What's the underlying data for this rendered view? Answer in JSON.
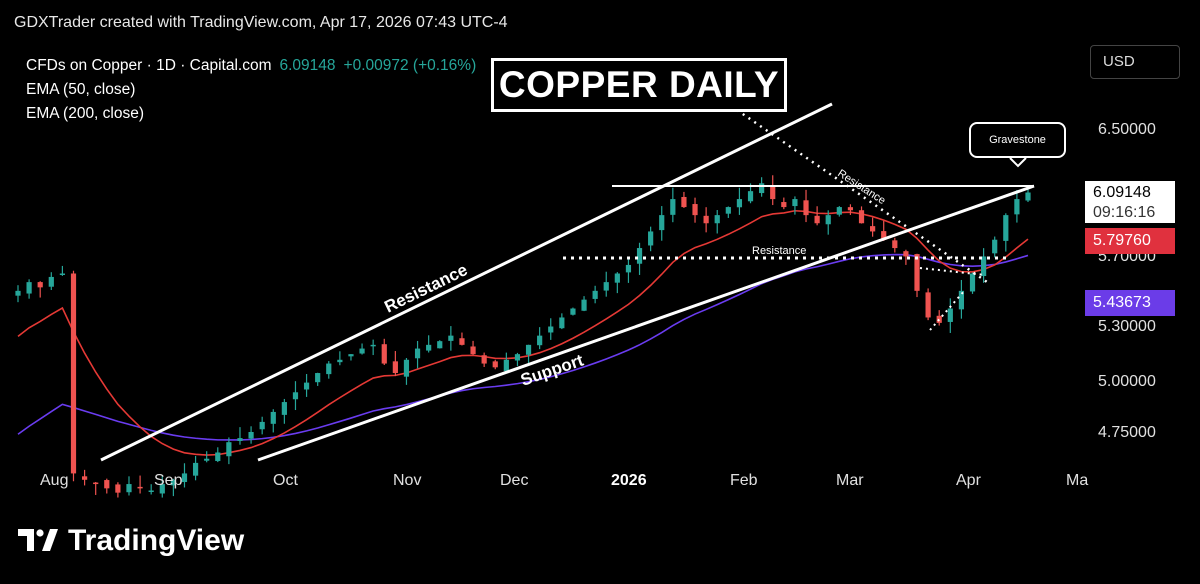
{
  "header": {
    "text": "GDXTrader created with TradingView.com, Apr 17, 2026 07:43 UTC-4"
  },
  "legend": {
    "symbol": "CFDs on Copper · 1D · Capital.com",
    "price": "6.09148",
    "change": "+0.00972 (+0.16%)",
    "ema50": "EMA (50, close)",
    "ema200": "EMA (200, close)"
  },
  "title": "COPPER DAILY",
  "currency_button": "USD",
  "callout": "Gravestone",
  "price_tags": {
    "last": "6.09148",
    "countdown": "09:16:16",
    "ema50": "5.79760",
    "ema200": "5.43673"
  },
  "colors": {
    "up": "#26a69a",
    "down": "#ef5350",
    "ema50": "#e53935",
    "ema200": "#6a3cf0",
    "ema50_tag": "#e0313e",
    "ema200_tag": "#6b3ce8"
  },
  "annotations": {
    "resistance_channel": "Resistance",
    "support": "Support",
    "resistance_dotted_down": "Resistance",
    "resistance_horizontal": "Resistance"
  },
  "chart_data": {
    "type": "candlestick",
    "y_axis": {
      "ticks": [
        "6.50000",
        "5.70000",
        "5.30000",
        "5.00000",
        "4.75000"
      ],
      "scale": "log"
    },
    "x_axis": {
      "ticks": [
        "Aug",
        "Sep",
        "Oct",
        "Nov",
        "Dec",
        "2026",
        "Feb",
        "Mar",
        "Apr",
        "Ma"
      ]
    },
    "series": [
      {
        "name": "CFDs on Copper",
        "last": 6.09148
      },
      {
        "name": "EMA (50, close)",
        "last": 5.7976
      },
      {
        "name": "EMA (200, close)",
        "last": 5.43673
      }
    ],
    "approx_closes": [
      5.5,
      5.55,
      5.52,
      5.58,
      5.6,
      4.55,
      4.52,
      4.5,
      4.48,
      4.46,
      4.5,
      4.48,
      4.47,
      4.5,
      4.52,
      4.55,
      4.6,
      4.62,
      4.65,
      4.7,
      4.72,
      4.75,
      4.8,
      4.85,
      4.9,
      4.95,
      5.0,
      5.05,
      5.1,
      5.12,
      5.15,
      5.18,
      5.2,
      5.1,
      5.05,
      5.12,
      5.18,
      5.2,
      5.22,
      5.25,
      5.2,
      5.15,
      5.1,
      5.08,
      5.12,
      5.15,
      5.2,
      5.25,
      5.3,
      5.35,
      5.4,
      5.45,
      5.5,
      5.55,
      5.6,
      5.65,
      5.75,
      5.85,
      5.95,
      6.05,
      6.0,
      5.95,
      5.9,
      5.95,
      6.0,
      6.05,
      6.1,
      6.15,
      6.05,
      6.0,
      6.05,
      5.95,
      5.9,
      5.95,
      6.0,
      5.98,
      5.9,
      5.85,
      5.8,
      5.75,
      5.7,
      5.5,
      5.35,
      5.32,
      5.4,
      5.5,
      5.6,
      5.7,
      5.8,
      5.95,
      6.05,
      6.09148
    ]
  }
}
